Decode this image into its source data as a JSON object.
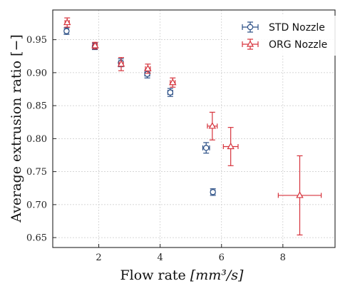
{
  "chart_data": {
    "type": "scatter",
    "title": "",
    "xlabel": "Flow rate",
    "xlabel_unit": "[mm³/s]",
    "ylabel": "Average extrusion ratio [−]",
    "xlim": [
      0.5,
      9.7
    ],
    "ylim": [
      0.635,
      0.995
    ],
    "xticks": [
      2,
      4,
      6,
      8
    ],
    "yticks": [
      0.65,
      0.7,
      0.75,
      0.8,
      0.85,
      0.9,
      0.95
    ],
    "grid": true,
    "legend_position": "top-right",
    "series": [
      {
        "name": "STD Nozzle",
        "marker": "circle",
        "color": "#2b4f86",
        "points": [
          {
            "x": 0.95,
            "y": 0.963,
            "xerr": 0.07,
            "yerr": 0.005
          },
          {
            "x": 1.87,
            "y": 0.94,
            "xerr": 0.07,
            "yerr": 0.005
          },
          {
            "x": 2.72,
            "y": 0.915,
            "xerr": 0.07,
            "yerr": 0.006
          },
          {
            "x": 3.58,
            "y": 0.898,
            "xerr": 0.08,
            "yerr": 0.006
          },
          {
            "x": 4.33,
            "y": 0.87,
            "xerr": 0.08,
            "yerr": 0.006
          },
          {
            "x": 5.5,
            "y": 0.786,
            "xerr": 0.11,
            "yerr": 0.008
          },
          {
            "x": 5.72,
            "y": 0.719,
            "xerr": 0.07,
            "yerr": 0.005
          }
        ]
      },
      {
        "name": "ORG Nozzle",
        "marker": "triangle",
        "color": "#d6333c",
        "points": [
          {
            "x": 0.97,
            "y": 0.976,
            "xerr": 0.07,
            "yerr": 0.007
          },
          {
            "x": 1.88,
            "y": 0.941,
            "xerr": 0.07,
            "yerr": 0.005
          },
          {
            "x": 2.73,
            "y": 0.913,
            "xerr": 0.07,
            "yerr": 0.01
          },
          {
            "x": 3.6,
            "y": 0.906,
            "xerr": 0.08,
            "yerr": 0.007
          },
          {
            "x": 4.41,
            "y": 0.885,
            "xerr": 0.08,
            "yerr": 0.007
          },
          {
            "x": 5.7,
            "y": 0.819,
            "xerr": 0.16,
            "yerr": 0.021
          },
          {
            "x": 6.3,
            "y": 0.788,
            "xerr": 0.24,
            "yerr": 0.029
          },
          {
            "x": 8.55,
            "y": 0.714,
            "xerr": 0.7,
            "yerr": 0.06
          }
        ]
      }
    ]
  }
}
